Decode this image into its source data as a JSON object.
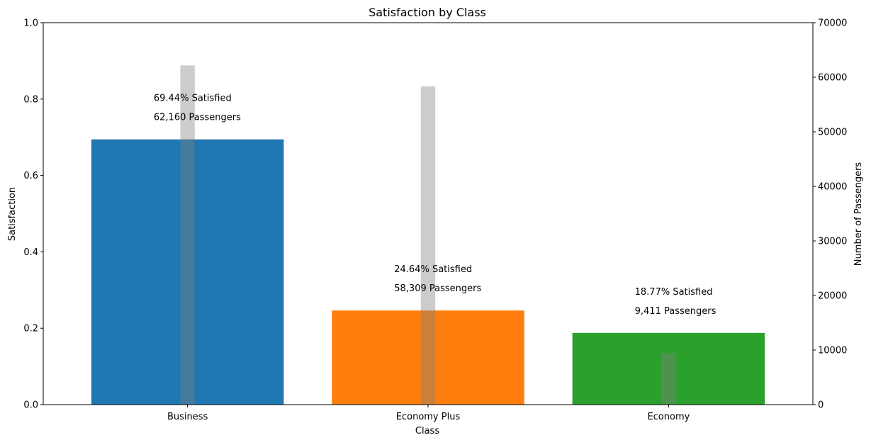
{
  "chart_data": {
    "type": "bar",
    "title": "Satisfaction by Class",
    "xlabel": "Class",
    "ylabel": "Satisfaction",
    "y2label": "Number of Passengers",
    "categories": [
      "Business",
      "Economy Plus",
      "Economy"
    ],
    "series": [
      {
        "axis": "left",
        "values": [
          0.6944,
          0.2464,
          0.1877
        ],
        "colors": [
          "#1f77b4",
          "#ff7f0e",
          "#2ca02c"
        ]
      },
      {
        "axis": "right",
        "values": [
          62160,
          58309,
          9411
        ],
        "color": "#808080",
        "opacity": 0.4
      }
    ],
    "ylim": [
      0,
      1.0
    ],
    "y2lim": [
      0,
      70000
    ],
    "yticks": [
      "0.0",
      "0.2",
      "0.4",
      "0.6",
      "0.8",
      "1.0"
    ],
    "y2ticks": [
      "0",
      "10000",
      "20000",
      "30000",
      "40000",
      "50000",
      "60000",
      "70000"
    ],
    "annotations": [
      {
        "satisfied": "69.44% Satisfied",
        "passengers": "62,160 Passengers"
      },
      {
        "satisfied": "24.64% Satisfied",
        "passengers": "58,309 Passengers"
      },
      {
        "satisfied": "18.77% Satisfied",
        "passengers": "9,411 Passengers"
      }
    ],
    "grid": false
  }
}
